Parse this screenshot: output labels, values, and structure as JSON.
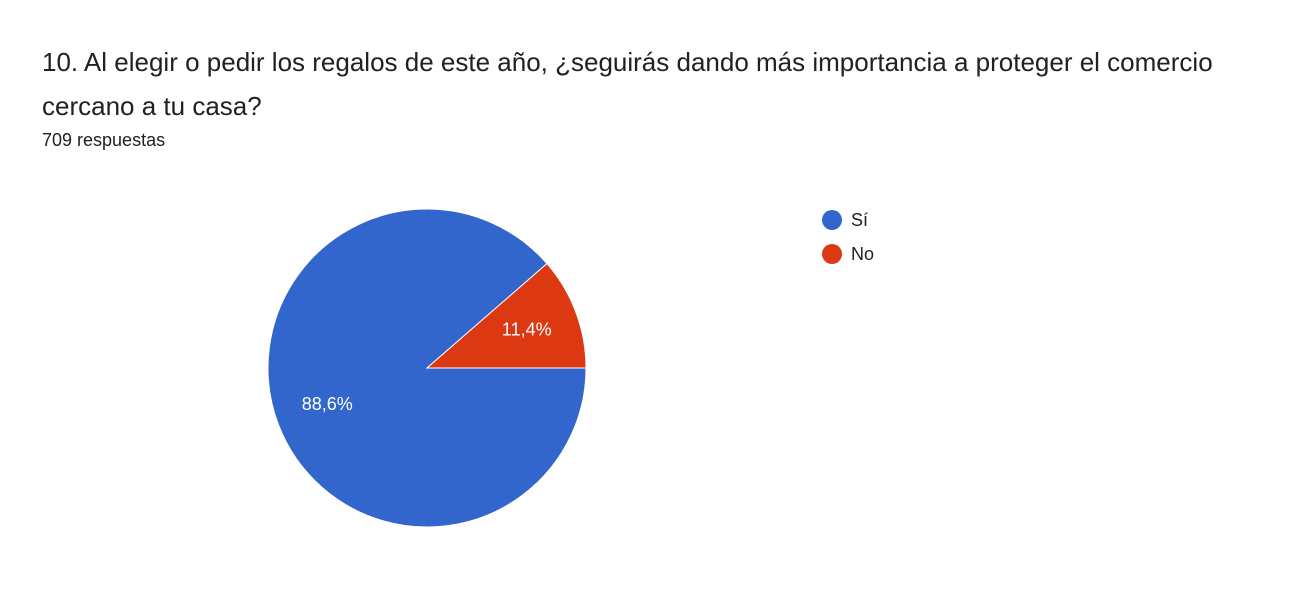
{
  "chart_data": {
    "type": "pie",
    "title": "10. Al elegir o pedir los regalos de este año, ¿seguirás dando más importancia a proteger el comercio cercano a tu casa?",
    "subtitle": "709 respuestas",
    "categories": [
      "Sí",
      "No"
    ],
    "values": [
      88.6,
      11.4
    ],
    "value_labels": [
      "88,6%",
      "11,4%"
    ],
    "colors": [
      "#3366cc",
      "#dc3912"
    ],
    "legend": "right"
  }
}
